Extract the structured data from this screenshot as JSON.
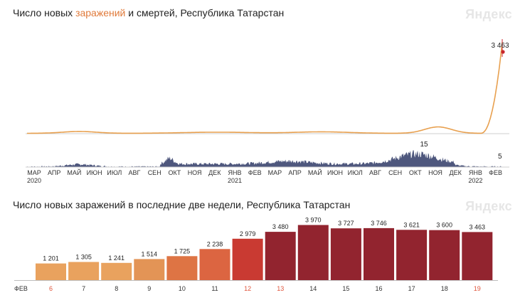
{
  "chart1": {
    "title_pre": "Число новых ",
    "title_highlight": "заражений",
    "title_post": " и смертей, Республика Татарстан",
    "logo": "Яндекс",
    "accent_color": "#e8a04f",
    "death_color": "#2f3a66",
    "peak_marker_color": "#c8262c",
    "infections_last_label": "3 463",
    "deaths_peak_label": "15",
    "deaths_last_label": "5",
    "months": [
      "МАР",
      "АПР",
      "МАЙ",
      "ИЮН",
      "ИЮЛ",
      "АВГ",
      "СЕН",
      "ОКТ",
      "НОЯ",
      "ДЕК",
      "ЯНВ",
      "ФЕВ",
      "МАР",
      "АПР",
      "МАЙ",
      "ИЮН",
      "ИЮЛ",
      "АВГ",
      "СЕН",
      "ОКТ",
      "НОЯ",
      "ДЕК",
      "ЯНВ",
      "ФЕВ"
    ],
    "years": [
      {
        "label": "2020",
        "month_index": 0
      },
      {
        "label": "2021",
        "month_index": 10
      },
      {
        "label": "2022",
        "month_index": 22
      }
    ]
  },
  "chart_data": {
    "type": "bar",
    "title": "Число новых заражений в последние две недели, Республика Татарстан",
    "logo": "Яндекс",
    "month_label": "ФЕВ",
    "categories": [
      "6",
      "7",
      "8",
      "9",
      "10",
      "11",
      "12",
      "13",
      "14",
      "15",
      "16",
      "17",
      "18",
      "19"
    ],
    "values": [
      1201,
      1305,
      1241,
      1514,
      1725,
      2238,
      2979,
      3480,
      3970,
      3727,
      3746,
      3621,
      3600,
      3463
    ],
    "value_labels": [
      "1 201",
      "1 305",
      "1 241",
      "1 514",
      "1 725",
      "2 238",
      "2 979",
      "3 480",
      "3 970",
      "3 727",
      "3 746",
      "3 621",
      "3 600",
      "3 463"
    ],
    "bar_colors": [
      "#e9a25e",
      "#e9a25e",
      "#e9a25e",
      "#e39456",
      "#de7444",
      "#dc6541",
      "#c93a32",
      "#92242f",
      "#92242f",
      "#92242f",
      "#92242f",
      "#92242f",
      "#92242f",
      "#92242f"
    ],
    "highlight_categories": [
      "6",
      "12",
      "13",
      "19"
    ],
    "highlight_color": "#e0553c",
    "ylim": [
      0,
      4200
    ]
  }
}
